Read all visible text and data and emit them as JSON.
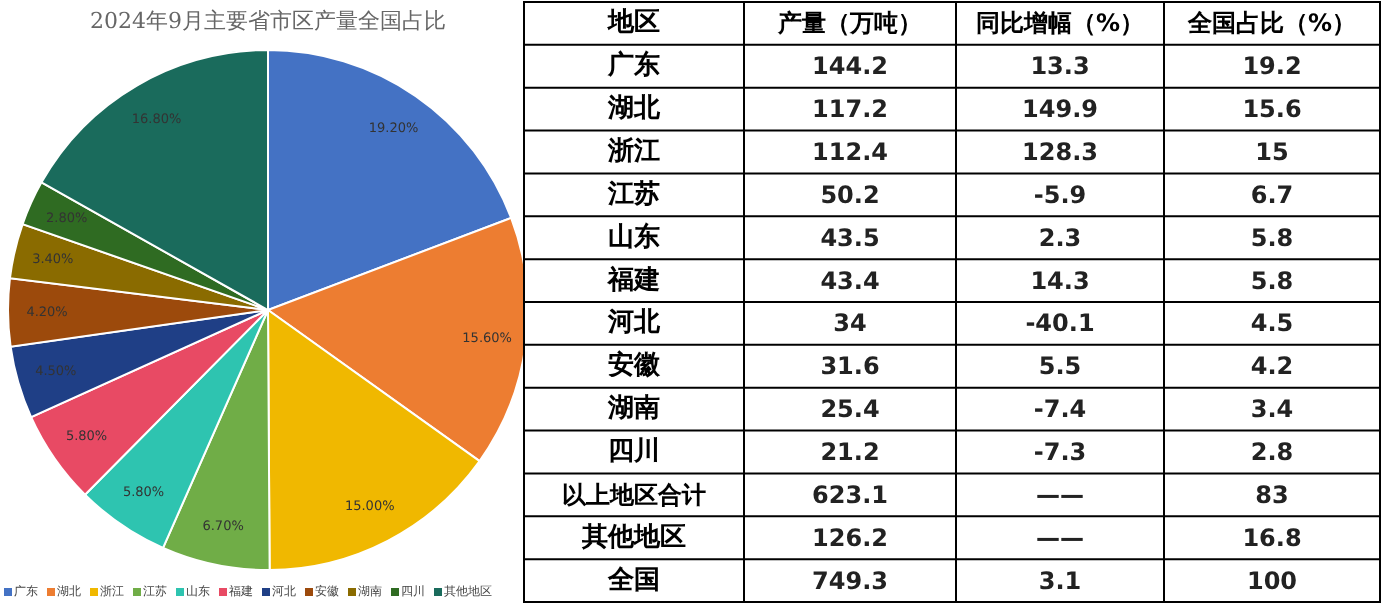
{
  "chart_data": [
    {
      "type": "pie",
      "title": "2024年9月主要省市区产量全国占比",
      "categories": [
        "广东",
        "湖北",
        "浙江",
        "江苏",
        "山东",
        "福建",
        "河北",
        "安徽",
        "湖南",
        "四川",
        "其他地区"
      ],
      "values": [
        19.2,
        15.6,
        15,
        6.7,
        5.8,
        5.8,
        4.5,
        4.2,
        3.4,
        2.8,
        16.8
      ],
      "value_labels": [
        "19.20%",
        "15.60%",
        "15.00%",
        "6.70%",
        "5.80%",
        "5.80%",
        "4.50%",
        "4.20%",
        "3.40%",
        "2.80%",
        "16.80%"
      ],
      "colors": [
        "#4472c4",
        "#ed7d31",
        "#f0b800",
        "#70ad47",
        "#2ec4b0",
        "#e84a64",
        "#1f3f86",
        "#9c4a0c",
        "#8a6b00",
        "#2f6b22",
        "#1a6b5c"
      ],
      "legend": "bottom"
    },
    {
      "type": "other",
      "xlabel": "地区",
      "categories": [
        "广东",
        "湖北",
        "浙江",
        "江苏",
        "山东",
        "福建",
        "河北",
        "安徽",
        "湖南",
        "四川",
        "以上地区合计",
        "其他地区",
        "全国"
      ],
      "series": [
        {
          "name": "产量（万吨）",
          "values": [
            144.2,
            117.2,
            112.4,
            50.2,
            43.5,
            43.4,
            34,
            31.6,
            25.4,
            21.2,
            623.1,
            126.2,
            749.3
          ]
        },
        {
          "name": "同比增幅（%）",
          "values": [
            13.3,
            149.9,
            128.3,
            -5.9,
            2.3,
            14.3,
            -40.1,
            5.5,
            -7.4,
            -7.3,
            null,
            null,
            3.1
          ]
        },
        {
          "name": "全国占比（%）",
          "values": [
            19.2,
            15.6,
            15,
            6.7,
            5.8,
            5.8,
            4.5,
            4.2,
            3.4,
            2.8,
            83,
            16.8,
            100
          ]
        }
      ],
      "annotations": [
        "——",
        "——"
      ],
      "data_labels": true
    }
  ]
}
